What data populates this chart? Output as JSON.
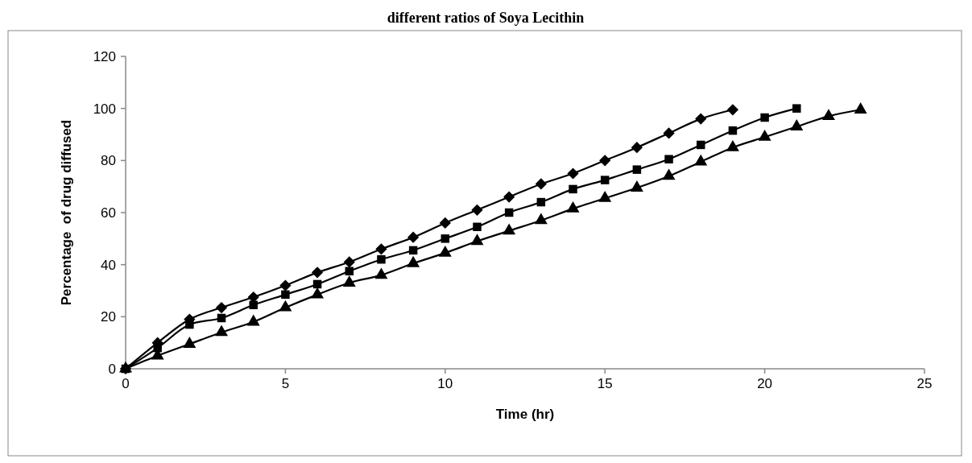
{
  "chart_data": {
    "type": "line",
    "title": "different ratios of Soya Lecithin",
    "xlabel": "Time (hr)",
    "ylabel": "Percentage  of drug diffused",
    "series": [
      {
        "color": "#000000",
        "marker": "diamond",
        "x": [
          0,
          1,
          2,
          3,
          4,
          5,
          6,
          7,
          8,
          9,
          10,
          11,
          12,
          13,
          14,
          15,
          16,
          17,
          18,
          19
        ],
        "values": [
          0,
          10,
          19,
          23.5,
          27.5,
          32,
          37,
          41,
          46,
          50.5,
          56,
          61,
          66,
          71,
          75,
          80,
          85,
          90.5,
          96,
          99.5
        ]
      },
      {
        "color": "#000000",
        "marker": "square",
        "x": [
          0,
          1,
          2,
          3,
          4,
          5,
          6,
          7,
          8,
          9,
          10,
          11,
          12,
          13,
          14,
          15,
          16,
          17,
          18,
          19,
          20,
          21
        ],
        "values": [
          0,
          8,
          17,
          19.5,
          24.5,
          28.5,
          32.5,
          37.5,
          42,
          45.5,
          50,
          54.5,
          60,
          64,
          69,
          72.5,
          76.5,
          80.5,
          86,
          91.5,
          96.5,
          100
        ]
      },
      {
        "color": "#000000",
        "marker": "triangle",
        "x": [
          0,
          1,
          2,
          3,
          4,
          5,
          6,
          7,
          8,
          9,
          10,
          11,
          12,
          13,
          14,
          15,
          16,
          17,
          18,
          19,
          20,
          21,
          22,
          23
        ],
        "values": [
          0,
          5,
          9.5,
          14,
          18,
          23.5,
          28.5,
          33,
          36,
          40.5,
          44.5,
          49,
          53,
          57,
          61.5,
          65.5,
          69.5,
          74,
          79.5,
          85,
          89,
          93,
          97,
          99.5
        ]
      }
    ],
    "xlim": [
      0,
      25
    ],
    "xticks": [
      0,
      5,
      10,
      15,
      20,
      25
    ],
    "ylim": [
      0,
      120
    ],
    "yticks": [
      0,
      20,
      40,
      60,
      80,
      100,
      120
    ],
    "grid": false,
    "line_style": "solid"
  }
}
